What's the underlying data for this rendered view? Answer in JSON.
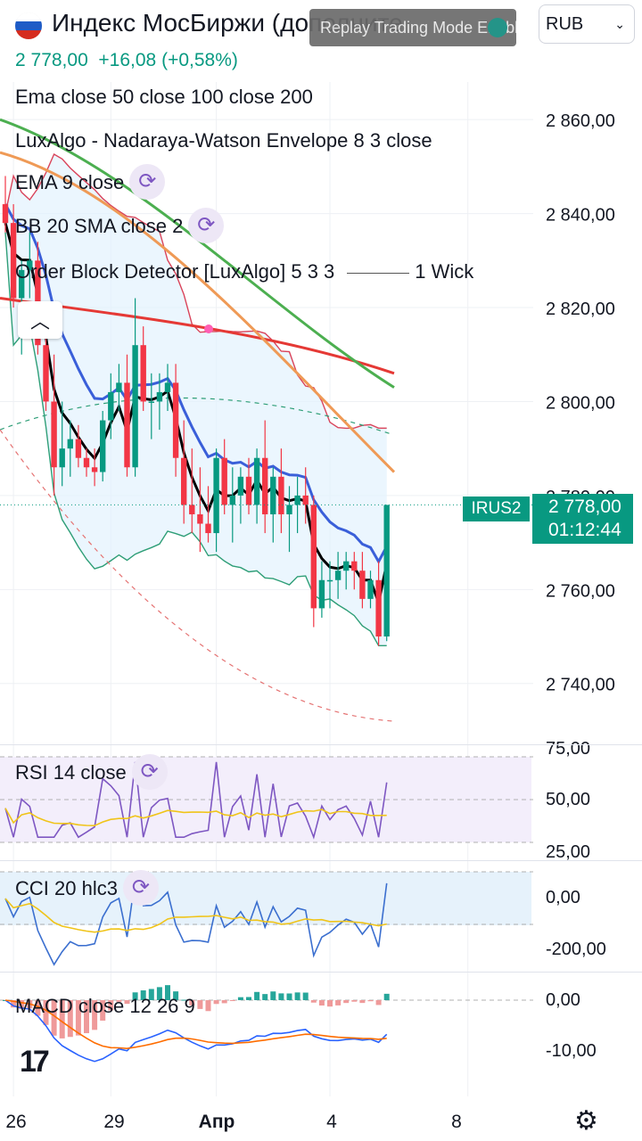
{
  "header": {
    "title": "Индекс МосБиржи (дополните",
    "mode_label": "Replay Trading Mode Enabled",
    "currency": "RUB",
    "price": "2 778,00",
    "change": "+16,08 (+0,58%)"
  },
  "indicators": {
    "ema": "Ema close 50 close 100 close 200",
    "nw": "LuxAlgo - Nadaraya-Watson Envelope 8 3 close",
    "ema9": "EMA 9 close",
    "bb": "BB 20 SMA close 2",
    "ob": "Order Block Detector [LuxAlgo] 5 3 3",
    "ob_suffix": "1 Wick"
  },
  "panes": {
    "rsi": "RSI 14 close",
    "cci": "CCI 20 hlc3",
    "macd": "MACD close 12 26 9"
  },
  "price_tag": {
    "symbol": "IRUS2",
    "price": "2 778,00",
    "timer": "01:12:44"
  },
  "logo": "17",
  "colors": {
    "up": "#089981",
    "down": "#f23645",
    "ema50": "#ef9a56",
    "ema100": "#4caf50",
    "ema200": "#e53935",
    "ema9": "#3a5fd9",
    "bb": "#2e9e77",
    "rsi": "#7e57c2",
    "cci": "#3b6fcf",
    "signal": "#f0c419",
    "macd": "#2962ff",
    "macd_signal": "#ff6d00"
  },
  "chart_data": {
    "type": "candlestick",
    "y_ticks": [
      "2 860,00",
      "2 840,00",
      "2 820,00",
      "2 800,00",
      "2 780,00",
      "2 760,00",
      "2 740,00"
    ],
    "x_ticks": [
      "26",
      "29",
      "Апр",
      "4",
      "8"
    ],
    "rsi_ticks": [
      "75,00",
      "50,00",
      "25,00"
    ],
    "cci_ticks": [
      "0,00",
      "-200,00"
    ],
    "macd_ticks": [
      "0,00",
      "-10,00"
    ],
    "ylim": [
      2728,
      2868
    ],
    "candles": [
      [
        2842,
        2848,
        2836,
        2838
      ],
      [
        2838,
        2842,
        2820,
        2822
      ],
      [
        2822,
        2830,
        2810,
        2828
      ],
      [
        2828,
        2836,
        2822,
        2830
      ],
      [
        2830,
        2834,
        2810,
        2812
      ],
      [
        2812,
        2818,
        2798,
        2800
      ],
      [
        2800,
        2810,
        2780,
        2786
      ],
      [
        2786,
        2800,
        2782,
        2790
      ],
      [
        2790,
        2796,
        2784,
        2792
      ],
      [
        2792,
        2795,
        2786,
        2788
      ],
      [
        2788,
        2790,
        2784,
        2786
      ],
      [
        2786,
        2790,
        2782,
        2785
      ],
      [
        2785,
        2798,
        2783,
        2796
      ],
      [
        2796,
        2806,
        2792,
        2802
      ],
      [
        2802,
        2808,
        2798,
        2804
      ],
      [
        2804,
        2810,
        2784,
        2786
      ],
      [
        2786,
        2822,
        2784,
        2812
      ],
      [
        2812,
        2816,
        2798,
        2800
      ],
      [
        2800,
        2806,
        2792,
        2800
      ],
      [
        2800,
        2806,
        2794,
        2802
      ],
      [
        2802,
        2808,
        2798,
        2804
      ],
      [
        2804,
        2808,
        2784,
        2788
      ],
      [
        2788,
        2796,
        2774,
        2778
      ],
      [
        2778,
        2790,
        2772,
        2776
      ],
      [
        2776,
        2786,
        2768,
        2774
      ],
      [
        2774,
        2782,
        2770,
        2772
      ],
      [
        2772,
        2790,
        2768,
        2788
      ],
      [
        2788,
        2792,
        2776,
        2778
      ],
      [
        2778,
        2786,
        2770,
        2780
      ],
      [
        2780,
        2786,
        2774,
        2784
      ],
      [
        2784,
        2788,
        2776,
        2778
      ],
      [
        2778,
        2790,
        2774,
        2788
      ],
      [
        2788,
        2796,
        2772,
        2776
      ],
      [
        2776,
        2786,
        2770,
        2784
      ],
      [
        2784,
        2790,
        2772,
        2776
      ],
      [
        2776,
        2782,
        2768,
        2778
      ],
      [
        2778,
        2784,
        2772,
        2780
      ],
      [
        2780,
        2786,
        2774,
        2778
      ],
      [
        2778,
        2780,
        2752,
        2756
      ],
      [
        2756,
        2766,
        2754,
        2762
      ],
      [
        2762,
        2766,
        2756,
        2762
      ],
      [
        2762,
        2768,
        2758,
        2764
      ],
      [
        2764,
        2768,
        2760,
        2766
      ],
      [
        2766,
        2768,
        2760,
        2764
      ],
      [
        2764,
        2768,
        2756,
        2758
      ],
      [
        2758,
        2764,
        2756,
        2762
      ],
      [
        2762,
        2766,
        2748,
        2750
      ],
      [
        2750,
        2778,
        2749,
        2778
      ]
    ],
    "last_price": 2778
  }
}
